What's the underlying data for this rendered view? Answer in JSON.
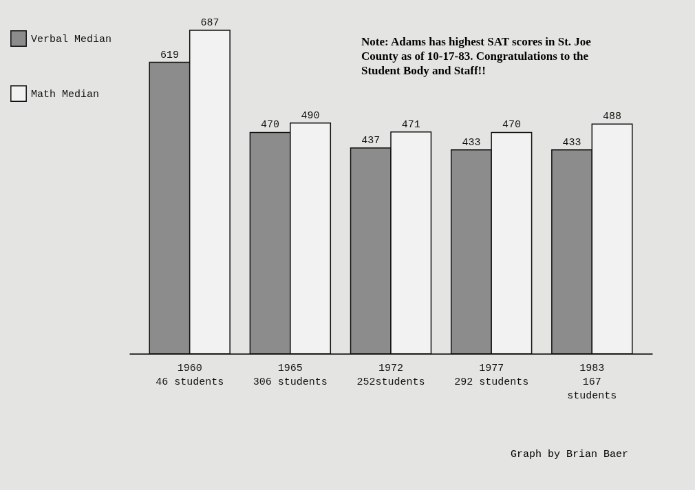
{
  "chart_data": {
    "type": "bar",
    "categories": [
      "1960\n46 students",
      "1965\n306 students",
      "1972\n252students",
      "1977\n292 students",
      "1983\n167\nstudents"
    ],
    "series": [
      {
        "name": "Verbal Median",
        "color": "#8c8c8c",
        "values": [
          619,
          470,
          437,
          433,
          433
        ]
      },
      {
        "name": "Math Median",
        "color": "#f2f2f2",
        "values": [
          687,
          490,
          471,
          470,
          488
        ]
      }
    ],
    "data_labels": true,
    "legend": "left",
    "tick_labels": "x",
    "annotations": [
      "Note: Adams has highest SAT scores in St. Joe County as of 10-17-83. Congratulations to the Student Body and Staff!!",
      "Graph by Brian Baer"
    ]
  }
}
